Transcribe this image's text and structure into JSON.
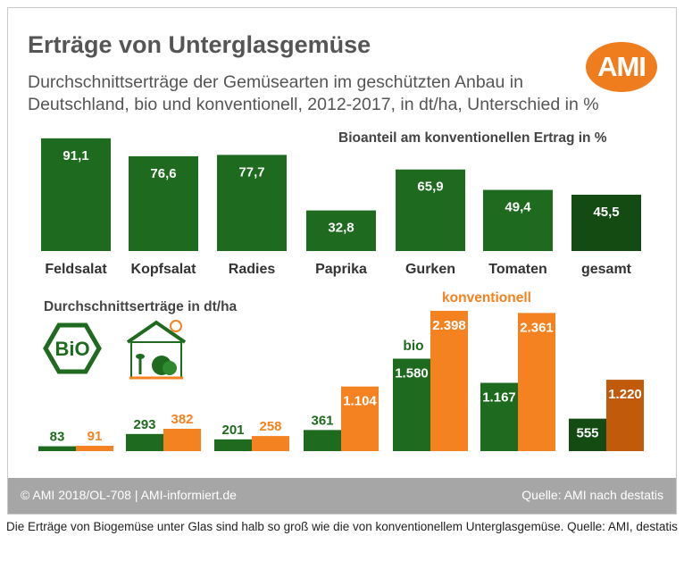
{
  "header": {
    "title": "Erträge von Unterglasgemüse",
    "subtitle_line1": "Durchschnittserträge der Gemüsearten im geschützten Anbau in",
    "subtitle_line2": "Deutschland, bio und konventionell, 2012-2017, in dt/ha, Unterschied in %",
    "logo_text": "AMI"
  },
  "footer": {
    "left": "© AMI 2018/OL-708 | AMI-informiert.de",
    "right": "Quelle: AMI nach destatis"
  },
  "caption": "Die Erträge von Biogemüse unter Glas sind halb so groß wie die von konventionellem Unterglasgemüse. Quelle: AMI, destatis",
  "colors": {
    "green": "#1e6a1e",
    "dark_green": "#134b13",
    "orange": "#f58220",
    "dark_orange": "#c25a0c",
    "gray_text": "#555555"
  },
  "chart_data": [
    {
      "type": "bar",
      "title": "Bioanteil am konventionellen Ertrag in %",
      "categories": [
        "Feldsalat",
        "Kopfsalat",
        "Radies",
        "Paprika",
        "Gurken",
        "Tomaten",
        "gesamt"
      ],
      "values": [
        91.1,
        76.6,
        77.7,
        32.8,
        65.9,
        49.4,
        45.5
      ],
      "value_labels": [
        "91,1",
        "76,6",
        "77,7",
        "32,8",
        "65,9",
        "49,4",
        "45,5"
      ],
      "ylim": [
        0,
        100
      ]
    },
    {
      "type": "bar",
      "title": "Durchschnittserträge in dt/ha",
      "categories": [
        "Feldsalat",
        "Kopfsalat",
        "Radies",
        "Paprika",
        "Gurken",
        "Tomaten",
        "gesamt"
      ],
      "legend": [
        "bio",
        "konventionell"
      ],
      "series": [
        {
          "name": "bio",
          "values": [
            83,
            293,
            201,
            361,
            1580,
            1167,
            555
          ],
          "value_labels": [
            "83",
            "293",
            "201",
            "361",
            "1.580",
            "1.167",
            "555"
          ]
        },
        {
          "name": "konventionell",
          "values": [
            91,
            382,
            258,
            1104,
            2398,
            2361,
            1220
          ],
          "value_labels": [
            "91",
            "382",
            "258",
            "1.104",
            "2.398",
            "2.361",
            "1.220"
          ]
        }
      ],
      "ylim": [
        0,
        2500
      ],
      "icons": [
        "bio-seal-icon",
        "greenhouse-icon"
      ],
      "icon_labels": [
        "BiO"
      ]
    }
  ]
}
